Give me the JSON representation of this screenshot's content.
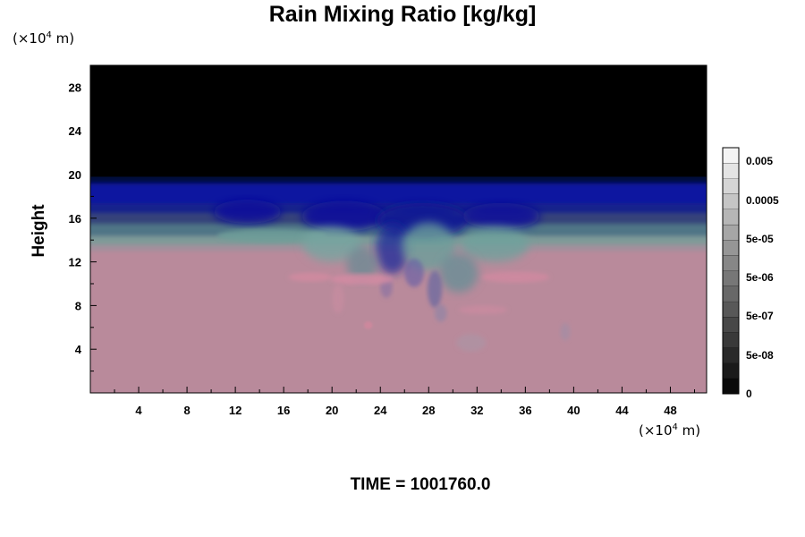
{
  "chart_data": {
    "type": "heatmap",
    "title": "Rain Mixing Ratio [kg/kg]",
    "ylabel": "Height",
    "x_unit": {
      "prefix": "(×10",
      "exp": "4",
      "suffix": " m)"
    },
    "y_unit": {
      "prefix": "(×10",
      "exp": "4",
      "suffix": " m)"
    },
    "xlim": [
      0,
      51
    ],
    "ylim": [
      0,
      30
    ],
    "x_ticks": [
      4,
      8,
      12,
      16,
      20,
      24,
      28,
      32,
      36,
      40,
      44,
      48
    ],
    "y_ticks": [
      4,
      8,
      12,
      16,
      20,
      24,
      28
    ],
    "time_label": "TIME = 1001760.0",
    "colorbar": {
      "labels": [
        "0.005",
        "0.0005",
        "5e-05",
        "5e-06",
        "5e-07",
        "5e-08",
        "0"
      ],
      "levels": 16
    },
    "fields": {
      "surface_color": "#b98a9b",
      "top_color": "#000000",
      "layer_colors": [
        "#000000",
        "#060a3c",
        "#0a16a0",
        "#17218c",
        "#35427a",
        "#4f7486",
        "#7e9a98",
        "#a28f9c",
        "#b98a9b"
      ],
      "layer_heights": [
        30,
        19.8,
        19.0,
        17.2,
        16.3,
        15.3,
        14.2,
        13.4,
        12.8
      ]
    },
    "features": [
      {
        "name": "blue plume",
        "x_range": [
          10,
          40
        ],
        "y_range": [
          14,
          19
        ]
      },
      {
        "name": "teal mixing region",
        "x_range": [
          11,
          38
        ],
        "y_range": [
          9,
          15
        ]
      },
      {
        "name": "pink streaks",
        "x_range": [
          15,
          38
        ],
        "y_range": [
          7,
          12
        ]
      },
      {
        "name": "lower tendrils",
        "x_range": [
          27,
          40
        ],
        "y_range": [
          3,
          8
        ]
      }
    ]
  }
}
